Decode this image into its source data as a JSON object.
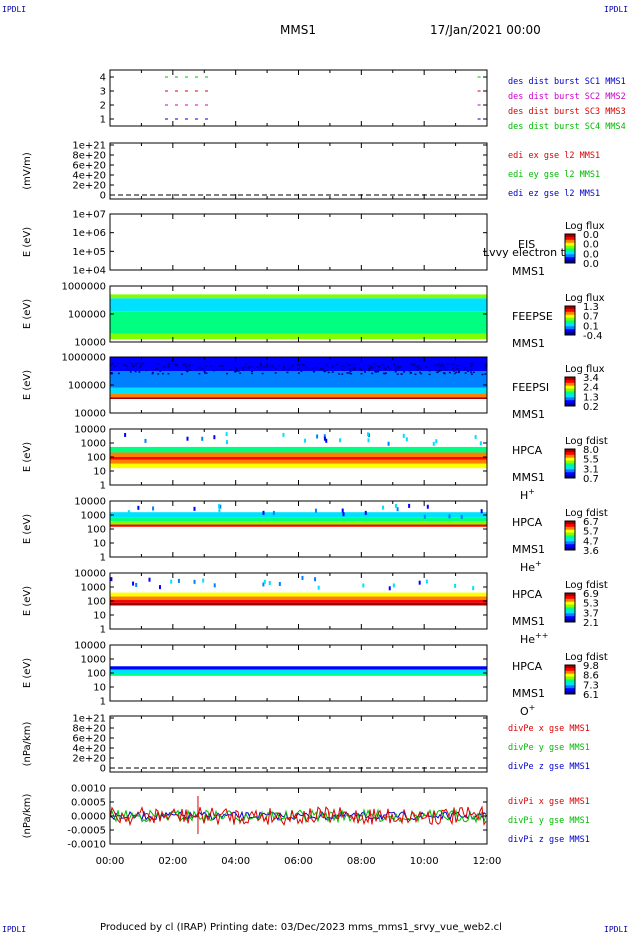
{
  "corners": {
    "tl": "IPDLI",
    "tr": "IPDLI",
    "bl": "IPDLI",
    "br": "IPDLI"
  },
  "header": {
    "spacecraft": "MMS1",
    "date": "17/Jan/2021 00:00"
  },
  "footer": "Produced by cl (IRAP)   Printing date: 03/Dec/2023   mms_mms1_srvy_vue_web2.cl",
  "colors": {
    "plasma": [
      "#000090",
      "#0000ff",
      "#0080ff",
      "#00e0ff",
      "#00ff80",
      "#80ff00",
      "#ffff00",
      "#ff8000",
      "#ff0000",
      "#a00000"
    ]
  },
  "chart_data": [
    {
      "type": "scatter",
      "ylim": [
        0.5,
        4.5
      ],
      "yticks": [
        "4",
        "3",
        "2",
        "1"
      ],
      "legend": [
        {
          "text": "des dist burst SC1 MMS1",
          "color": "#0000cc"
        },
        {
          "text": "des dist burst SC2 MMS2",
          "color": "#cc00cc"
        },
        {
          "text": "des dist burst SC3 MMS3",
          "color": "#dd0000"
        },
        {
          "text": "des dist burst SC4 MMS4",
          "color": "#00bb00"
        }
      ],
      "series": [
        {
          "y": 4,
          "color": "#00bb00",
          "segments": [
            [
              1.75,
              3.3
            ],
            [
              11.7,
              12.0
            ]
          ]
        },
        {
          "y": 3,
          "color": "#dd0000",
          "segments": [
            [
              1.75,
              3.3
            ],
            [
              11.7,
              12.0
            ]
          ]
        },
        {
          "y": 2,
          "color": "#cc00cc",
          "segments": [
            [
              1.75,
              3.3
            ],
            [
              11.7,
              12.0
            ]
          ]
        },
        {
          "y": 1,
          "color": "#0000cc",
          "segments": [
            [
              1.75,
              3.3
            ],
            [
              11.7,
              12.0
            ]
          ]
        }
      ]
    },
    {
      "type": "line",
      "ylabel": "(mV/m)",
      "yticks": [
        "1e+21",
        "8e+20",
        "6e+20",
        "4e+20",
        "2e+20",
        "0"
      ],
      "legend": [
        {
          "text": "edi ex gse l2 MMS1",
          "color": "#dd0000"
        },
        {
          "text": "edi ey gse l2 MMS1",
          "color": "#00bb00"
        },
        {
          "text": "edi ez gse l2 MMS1",
          "color": "#0000cc"
        }
      ]
    },
    {
      "type": "heatmap",
      "ylabel": "E (eV)",
      "yticks": [
        "1e+07",
        "1e+06",
        "1e+05",
        "1e+04"
      ],
      "instrument": [
        "EIS",
        "MMS1"
      ],
      "note": "Lvvy electron tc",
      "colorbar": {
        "title": "Log flux",
        "ticks": [
          "0.0",
          "0.0",
          "0.0",
          "0.0"
        ]
      }
    },
    {
      "type": "heatmap",
      "ylabel": "E (eV)",
      "yticks": [
        "1000000",
        "100000",
        "10000"
      ],
      "instrument": [
        "FEEPSE",
        "MMS1"
      ],
      "colorbar": {
        "title": "Log flux",
        "ticks": [
          "1.3",
          "0.7",
          "0.1",
          "-0.4"
        ]
      }
    },
    {
      "type": "heatmap",
      "ylabel": "E (eV)",
      "yticks": [
        "1000000",
        "100000",
        "10000"
      ],
      "instrument": [
        "FEEPSI",
        "MMS1"
      ],
      "colorbar": {
        "title": "Log flux",
        "ticks": [
          "3.4",
          "2.4",
          "1.3",
          "0.2"
        ]
      }
    },
    {
      "type": "heatmap",
      "ylabel": "E (eV)",
      "yticks": [
        "10000",
        "1000",
        "100",
        "10",
        "1"
      ],
      "instrument": [
        "HPCA",
        "MMS1"
      ],
      "species": "H",
      "charge": "+",
      "colorbar": {
        "title": "Log fdist",
        "ticks": [
          "8.0",
          "5.5",
          "3.1",
          "0.7"
        ]
      }
    },
    {
      "type": "heatmap",
      "ylabel": "E (eV)",
      "yticks": [
        "10000",
        "1000",
        "100",
        "10",
        "1"
      ],
      "instrument": [
        "HPCA",
        "MMS1"
      ],
      "species": "He",
      "charge": "+",
      "colorbar": {
        "title": "Log fdist",
        "ticks": [
          "6.7",
          "5.7",
          "4.7",
          "3.6"
        ]
      }
    },
    {
      "type": "heatmap",
      "ylabel": "E (eV)",
      "yticks": [
        "10000",
        "1000",
        "100",
        "10",
        "1"
      ],
      "instrument": [
        "HPCA",
        "MMS1"
      ],
      "species": "He",
      "charge": "++",
      "colorbar": {
        "title": "Log fdist",
        "ticks": [
          "6.9",
          "5.3",
          "3.7",
          "2.1"
        ]
      }
    },
    {
      "type": "heatmap",
      "ylabel": "E (eV)",
      "yticks": [
        "10000",
        "1000",
        "100",
        "10",
        "1"
      ],
      "instrument": [
        "HPCA",
        "MMS1"
      ],
      "species": "O",
      "charge": "+",
      "colorbar": {
        "title": "Log fdist",
        "ticks": [
          "9.8",
          "8.6",
          "7.3",
          "6.1"
        ]
      }
    },
    {
      "type": "line",
      "ylabel": "(nPa/km)",
      "yticks": [
        "1e+21",
        "8e+20",
        "6e+20",
        "4e+20",
        "2e+20",
        "0"
      ],
      "legend": [
        {
          "text": "divPe x gse MMS1",
          "color": "#dd0000"
        },
        {
          "text": "divPe y gse MMS1",
          "color": "#00bb00"
        },
        {
          "text": "divPe z gse MMS1",
          "color": "#0000cc"
        }
      ]
    },
    {
      "type": "line",
      "ylabel": "(nPa/km)",
      "yticks": [
        "0.0010",
        "0.0005",
        "0.0000",
        "-0.0005",
        "-0.0010"
      ],
      "ylim": [
        -0.00125,
        0.00125
      ],
      "legend": [
        {
          "text": "divPi x gse MMS1",
          "color": "#dd0000"
        },
        {
          "text": "divPi y gse MMS1",
          "color": "#00bb00"
        },
        {
          "text": "divPi z gse MMS1",
          "color": "#0000cc"
        }
      ]
    }
  ],
  "xaxis": {
    "ticks": [
      "00:00",
      "02:00",
      "04:00",
      "06:00",
      "08:00",
      "10:00",
      "12:00"
    ],
    "range_hours": [
      0,
      12
    ]
  }
}
